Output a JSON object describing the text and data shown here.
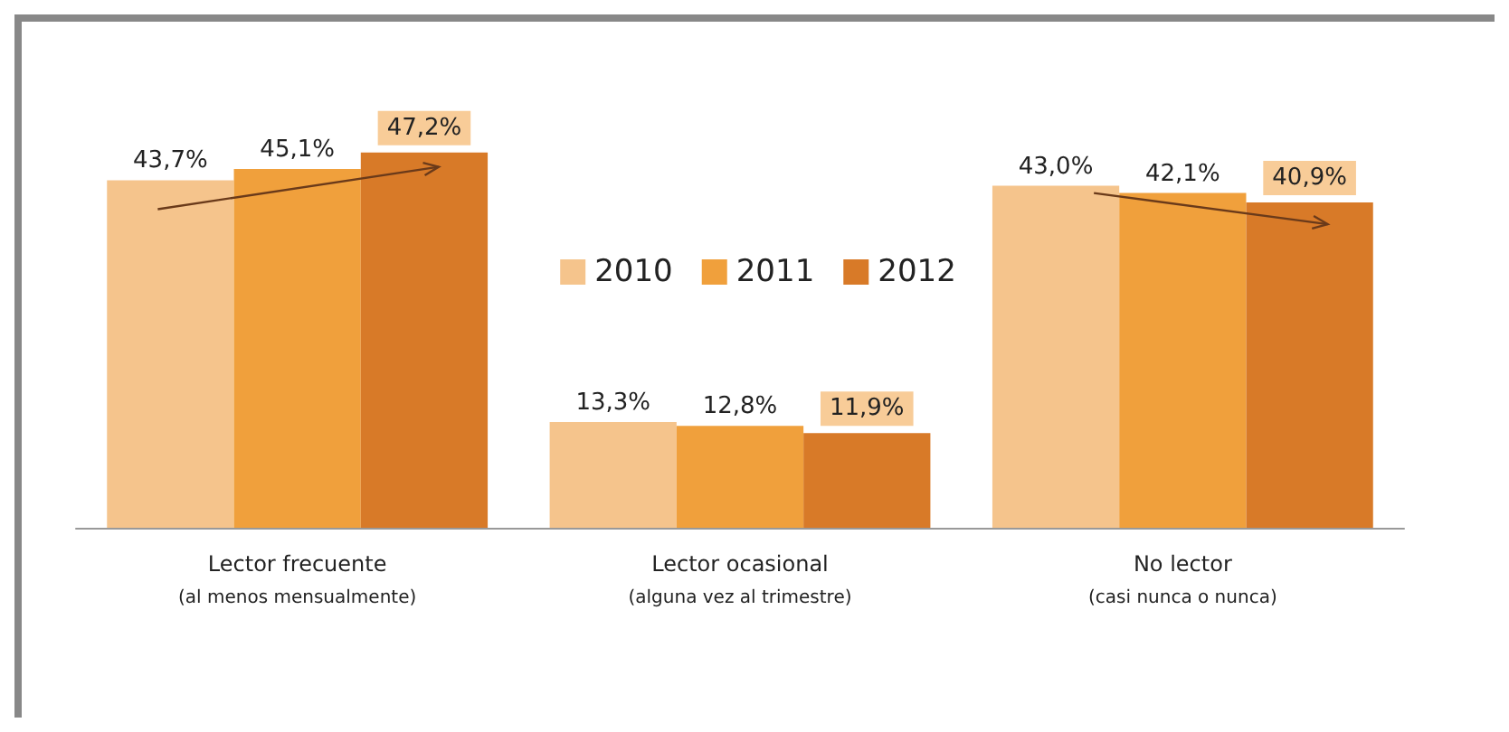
{
  "chart_data": {
    "type": "bar",
    "categories": [
      "Lector frecuente\n(al menos mensualmente)",
      "Lector ocasional\n(alguna vez al trimestre)",
      "No lector\n(casi nunca o nunca)"
    ],
    "series": [
      {
        "name": "2010",
        "color": "#f5c48c",
        "values": [
          43.7,
          13.3,
          43.0
        ],
        "value_labels": [
          "43,7%",
          "13,3%",
          "43,0%"
        ]
      },
      {
        "name": "2011",
        "color": "#f0a03c",
        "values": [
          45.1,
          12.8,
          42.1
        ],
        "value_labels": [
          "45,1%",
          "12,8%",
          "42,1%"
        ]
      },
      {
        "name": "2012",
        "color": "#d87a28",
        "values": [
          47.2,
          11.9,
          40.9
        ],
        "value_labels": [
          "47,2%",
          "11,9%",
          "40,9%"
        ]
      }
    ],
    "legend": "top"
  }
}
